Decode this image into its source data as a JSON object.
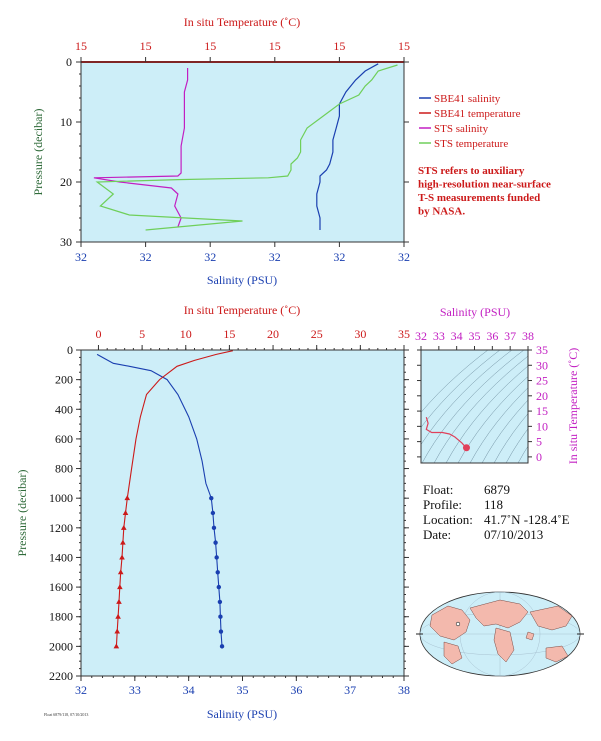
{
  "upper_plot": {
    "top_axis_label": "In situ Temperature (˚C)",
    "top_ticks": [
      "15",
      "15",
      "15",
      "15",
      "15",
      "15"
    ],
    "bottom_axis_label": "Salinity (PSU)",
    "bottom_ticks": [
      "32",
      "32",
      "32",
      "32",
      "32",
      "32"
    ],
    "y_axis_label": "Pressure (decibar)",
    "y_ticks": [
      "0",
      "10",
      "20",
      "30"
    ]
  },
  "legend": {
    "items": [
      {
        "label": "SBE41 salinity",
        "color": "#1a3fb0"
      },
      {
        "label": "SBE41 temperature",
        "color": "#cc1a1a"
      },
      {
        "label": "STS salinity",
        "color": "#c21fc2"
      },
      {
        "label": "STS temperature",
        "color": "#6fcf5a"
      }
    ],
    "note_lines": [
      "STS refers to auxiliary",
      "high-resolution near-surface",
      "T-S measurements funded",
      "by NASA."
    ]
  },
  "lower_plot": {
    "top_axis_label": "In situ Temperature (˚C)",
    "top_ticks": [
      "0",
      "5",
      "10",
      "15",
      "20",
      "25",
      "30",
      "35"
    ],
    "bottom_axis_label": "Salinity (PSU)",
    "bottom_ticks": [
      "32",
      "33",
      "34",
      "35",
      "36",
      "37",
      "38"
    ],
    "y_axis_label": "Pressure (decibar)",
    "y_ticks": [
      "0",
      "200",
      "400",
      "600",
      "800",
      "1000",
      "1200",
      "1400",
      "1600",
      "1800",
      "2000",
      "2200"
    ]
  },
  "ts_plot": {
    "top_axis_label": "Salinity (PSU)",
    "top_ticks": [
      "32",
      "33",
      "34",
      "35",
      "36",
      "37",
      "38"
    ],
    "right_axis_label": "In situ Temperature (˚C)",
    "right_ticks": [
      "0",
      "5",
      "10",
      "15",
      "20",
      "25",
      "30",
      "35"
    ]
  },
  "info": {
    "float_label": "Float:",
    "float_value": "6879",
    "profile_label": "Profile:",
    "profile_value": "118",
    "location_label": "Location:",
    "location_value": "41.7˚N  -128.4˚E",
    "date_label": "Date:",
    "date_value": "07/10/2013"
  },
  "footer_text": "Float 6879/118, 07/10/2013",
  "chart_data": [
    {
      "type": "line",
      "name": "upper-near-surface-profile",
      "y_axis": "Pressure (decibar)",
      "ylim": [
        30,
        0
      ],
      "x_bottom": "Salinity (PSU)",
      "x_top": "In situ Temperature (˚C)",
      "series": [
        {
          "name": "SBE41 salinity",
          "color": "#1a3fb0",
          "axis": "salinity",
          "xlim": [
            0,
            100
          ],
          "points": [
            [
              92,
              0.3
            ],
            [
              88,
              1.5
            ],
            [
              85,
              3
            ],
            [
              82,
              5
            ],
            [
              80,
              7
            ],
            [
              80,
              9
            ],
            [
              79,
              11
            ],
            [
              78,
              13
            ],
            [
              78,
              15
            ],
            [
              77,
              17
            ],
            [
              76,
              18
            ],
            [
              74,
              19
            ],
            [
              74,
              20
            ],
            [
              73,
              22
            ],
            [
              73,
              24
            ],
            [
              74,
              26
            ],
            [
              74,
              28
            ]
          ]
        },
        {
          "name": "SBE41 temperature",
          "color": "#cc1a1a",
          "axis": "temperature",
          "xlim": [
            0,
            100
          ],
          "points": [
            [
              100,
              0
            ],
            [
              0,
              0
            ]
          ]
        },
        {
          "name": "STS salinity",
          "color": "#c21fc2",
          "axis": "salinity",
          "xlim": [
            0,
            100
          ],
          "points": [
            [
              33,
              1
            ],
            [
              33,
              3
            ],
            [
              32,
              5
            ],
            [
              32,
              8
            ],
            [
              32,
              11
            ],
            [
              31,
              14
            ],
            [
              31,
              17
            ],
            [
              31,
              18.5
            ],
            [
              30,
              19
            ],
            [
              4,
              19.3
            ],
            [
              12,
              20
            ],
            [
              28,
              21
            ],
            [
              30,
              22
            ],
            [
              29,
              24
            ],
            [
              31,
              26
            ],
            [
              30,
              27.5
            ]
          ]
        },
        {
          "name": "STS temperature",
          "color": "#6fcf5a",
          "axis": "temperature",
          "xlim": [
            0,
            100
          ],
          "points": [
            [
              98,
              0.5
            ],
            [
              92,
              1.5
            ],
            [
              90,
              3
            ],
            [
              88,
              4
            ],
            [
              86,
              5.5
            ],
            [
              80,
              7
            ],
            [
              75,
              9
            ],
            [
              70,
              11
            ],
            [
              68,
              13
            ],
            [
              68,
              15
            ],
            [
              67,
              16
            ],
            [
              65,
              17
            ],
            [
              65,
              18
            ],
            [
              64,
              19
            ],
            [
              58,
              19.3
            ],
            [
              30,
              19.6
            ],
            [
              5,
              20
            ],
            [
              10,
              22
            ],
            [
              6,
              24
            ],
            [
              15,
              25.5
            ],
            [
              50,
              26.5
            ],
            [
              30,
              27.5
            ],
            [
              20,
              28
            ]
          ]
        }
      ]
    },
    {
      "type": "line",
      "name": "full-depth-profile",
      "ylabel": "Pressure (decibar)",
      "ylim": [
        2200,
        0
      ],
      "xlabel": "Salinity (PSU)",
      "xlim": [
        32,
        38
      ],
      "x2label": "In situ Temperature (˚C)",
      "x2lim": [
        -2,
        35
      ],
      "series": [
        {
          "name": "SBE41 salinity",
          "color": "#1a3fb0",
          "axis": "salinity",
          "points": [
            [
              32.3,
              30
            ],
            [
              32.45,
              60
            ],
            [
              32.6,
              90
            ],
            [
              32.9,
              110
            ],
            [
              33.3,
              140
            ],
            [
              33.6,
              200
            ],
            [
              33.8,
              300
            ],
            [
              34.0,
              450
            ],
            [
              34.15,
              600
            ],
            [
              34.25,
              750
            ],
            [
              34.32,
              900
            ],
            [
              34.42,
              1000
            ],
            [
              34.45,
              1100
            ],
            [
              34.47,
              1200
            ],
            [
              34.5,
              1300
            ],
            [
              34.52,
              1400
            ],
            [
              34.54,
              1500
            ],
            [
              34.56,
              1600
            ],
            [
              34.58,
              1700
            ],
            [
              34.59,
              1800
            ],
            [
              34.6,
              1900
            ],
            [
              34.62,
              2000
            ]
          ]
        },
        {
          "name": "SBE41 temperature",
          "color": "#cc1a1a",
          "axis": "temperature",
          "points": [
            [
              15.4,
              5
            ],
            [
              13.5,
              30
            ],
            [
              11.0,
              70
            ],
            [
              9.0,
              110
            ],
            [
              7.0,
              200
            ],
            [
              5.5,
              300
            ],
            [
              4.8,
              450
            ],
            [
              4.3,
              600
            ],
            [
              3.8,
              800
            ],
            [
              3.3,
              1000
            ],
            [
              3.1,
              1100
            ],
            [
              2.9,
              1200
            ],
            [
              2.8,
              1300
            ],
            [
              2.7,
              1400
            ],
            [
              2.55,
              1500
            ],
            [
              2.45,
              1600
            ],
            [
              2.35,
              1700
            ],
            [
              2.25,
              1800
            ],
            [
              2.15,
              1900
            ],
            [
              2.05,
              2000
            ]
          ]
        }
      ]
    },
    {
      "type": "line",
      "name": "ts-diagram",
      "xlabel": "Salinity (PSU)",
      "xlim": [
        32,
        38
      ],
      "ylabel": "In situ Temperature (˚C)",
      "ylim": [
        -2,
        35
      ],
      "series": [
        {
          "name": "T-S",
          "color": "#e0405a",
          "points": [
            [
              32.3,
              13
            ],
            [
              32.4,
              11
            ],
            [
              32.3,
              9
            ],
            [
              32.6,
              8
            ],
            [
              33.2,
              8
            ],
            [
              33.6,
              7.5
            ],
            [
              33.9,
              6.5
            ],
            [
              34.1,
              5.5
            ],
            [
              34.3,
              4.5
            ],
            [
              34.45,
              3.5
            ],
            [
              34.55,
              3
            ]
          ]
        }
      ]
    }
  ]
}
